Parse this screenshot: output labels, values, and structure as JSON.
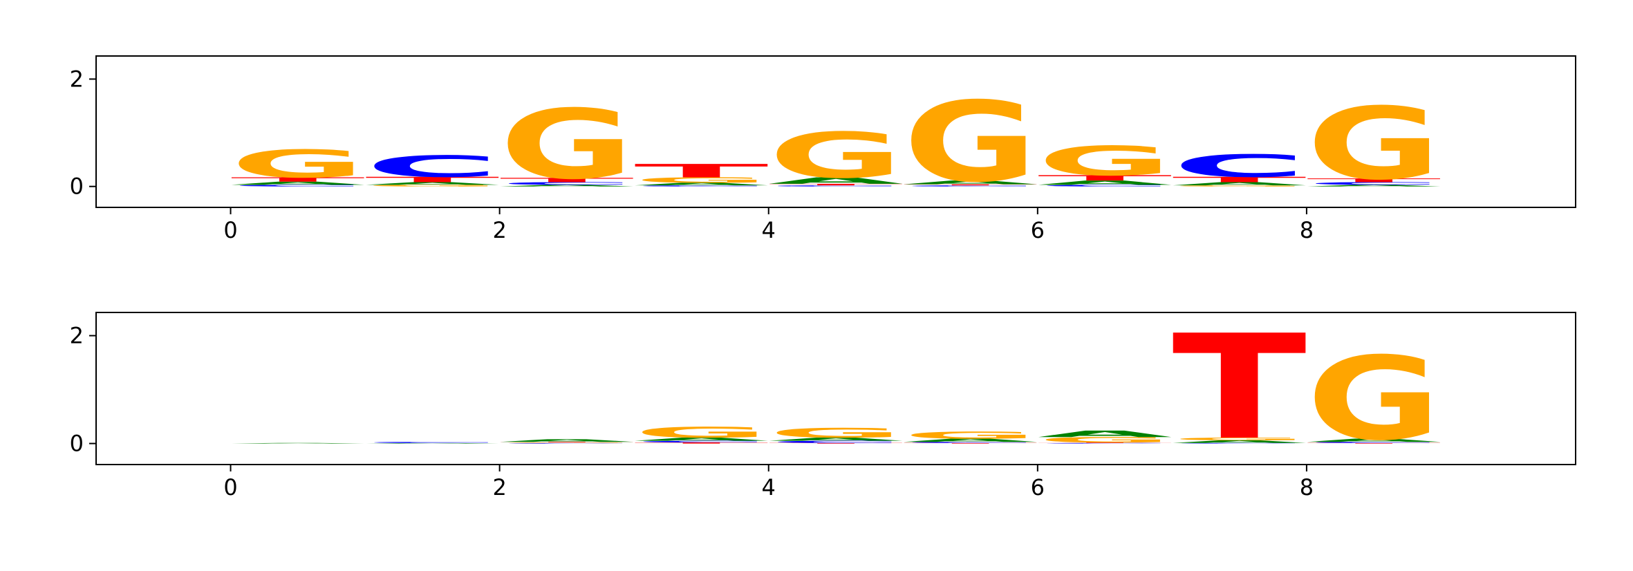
{
  "chart_data": [
    {
      "type": "logo",
      "x": [
        0,
        1,
        2,
        3,
        4,
        5,
        6,
        7,
        8
      ],
      "series": [
        {
          "name": "A",
          "color": "#008000",
          "values": [
            0.06,
            0.05,
            0.03,
            0.05,
            0.12,
            0.07,
            0.08,
            0.06,
            0.03
          ]
        },
        {
          "name": "C",
          "color": "#0000ff",
          "values": [
            0.03,
            0.4,
            0.05,
            0.02,
            0.02,
            0.02,
            0.03,
            0.42,
            0.05
          ]
        },
        {
          "name": "G",
          "color": "#ffa500",
          "values": [
            0.52,
            0.03,
            1.3,
            0.1,
            0.85,
            1.5,
            0.55,
            0.02,
            1.35
          ]
        },
        {
          "name": "T",
          "color": "#ff0000",
          "values": [
            0.08,
            0.1,
            0.08,
            0.25,
            0.03,
            0.02,
            0.1,
            0.1,
            0.07
          ]
        }
      ],
      "xlim": [
        -1,
        10
      ],
      "ylim": [
        -0.39,
        2.43
      ],
      "xticks": [
        0,
        2,
        4,
        6,
        8
      ],
      "yticks": [
        0,
        2
      ]
    },
    {
      "type": "logo",
      "x": [
        0,
        1,
        2,
        3,
        4,
        5,
        6,
        7,
        8
      ],
      "series": [
        {
          "name": "A",
          "color": "#008000",
          "values": [
            0.01,
            0.01,
            0.05,
            0.06,
            0.06,
            0.06,
            0.12,
            0.05,
            0.06
          ]
        },
        {
          "name": "C",
          "color": "#0000ff",
          "values": [
            0.0,
            0.02,
            0.01,
            0.03,
            0.04,
            0.02,
            0.01,
            0.01,
            0.02
          ]
        },
        {
          "name": "G",
          "color": "#ffa500",
          "values": [
            0.0,
            0.0,
            0.01,
            0.2,
            0.18,
            0.13,
            0.1,
            0.05,
            1.55
          ]
        },
        {
          "name": "T",
          "color": "#ff0000",
          "values": [
            0.0,
            0.0,
            0.01,
            0.02,
            0.01,
            0.01,
            0.01,
            1.95,
            0.01
          ]
        }
      ],
      "xlim": [
        -1,
        10
      ],
      "ylim": [
        -0.39,
        2.43
      ],
      "xticks": [
        0,
        2,
        4,
        6,
        8
      ],
      "yticks": [
        0,
        2
      ]
    }
  ]
}
